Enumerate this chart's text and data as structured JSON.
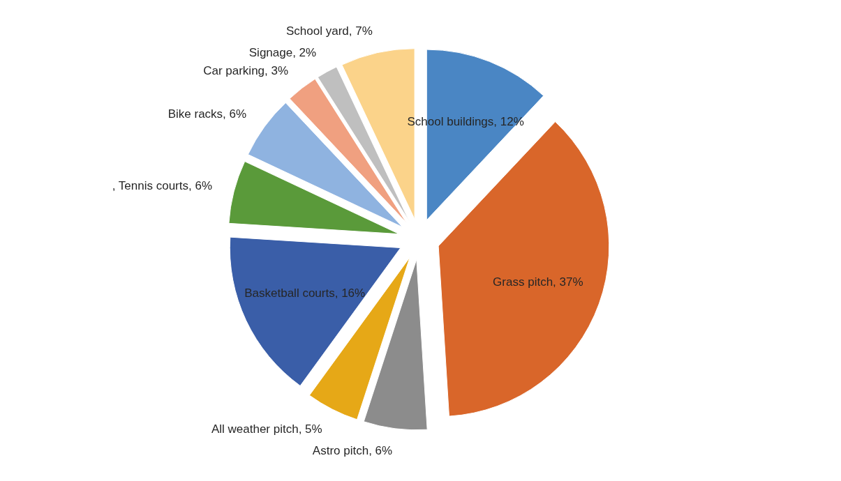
{
  "chart_data": {
    "type": "pie",
    "categories": [
      "School buildings",
      "Grass pitch",
      "Astro pitch",
      "All weather pitch",
      "Basketball courts",
      ", Tennis courts",
      "Bike racks",
      "Car parking",
      "Signage",
      "School yard"
    ],
    "values": [
      12,
      37,
      6,
      5,
      16,
      6,
      6,
      3,
      2,
      7
    ],
    "value_labels": [
      "12%",
      "37%",
      "6%",
      "5%",
      "16%",
      "6%",
      "6%",
      "3%",
      "2%",
      "7%"
    ],
    "colors": [
      "#4a86c4",
      "#d9662a",
      "#8c8c8c",
      "#e6a817",
      "#3a5ea8",
      "#5a9a3a",
      "#8fb3e0",
      "#f0a080",
      "#bfbfbf",
      "#fbd38a"
    ]
  }
}
